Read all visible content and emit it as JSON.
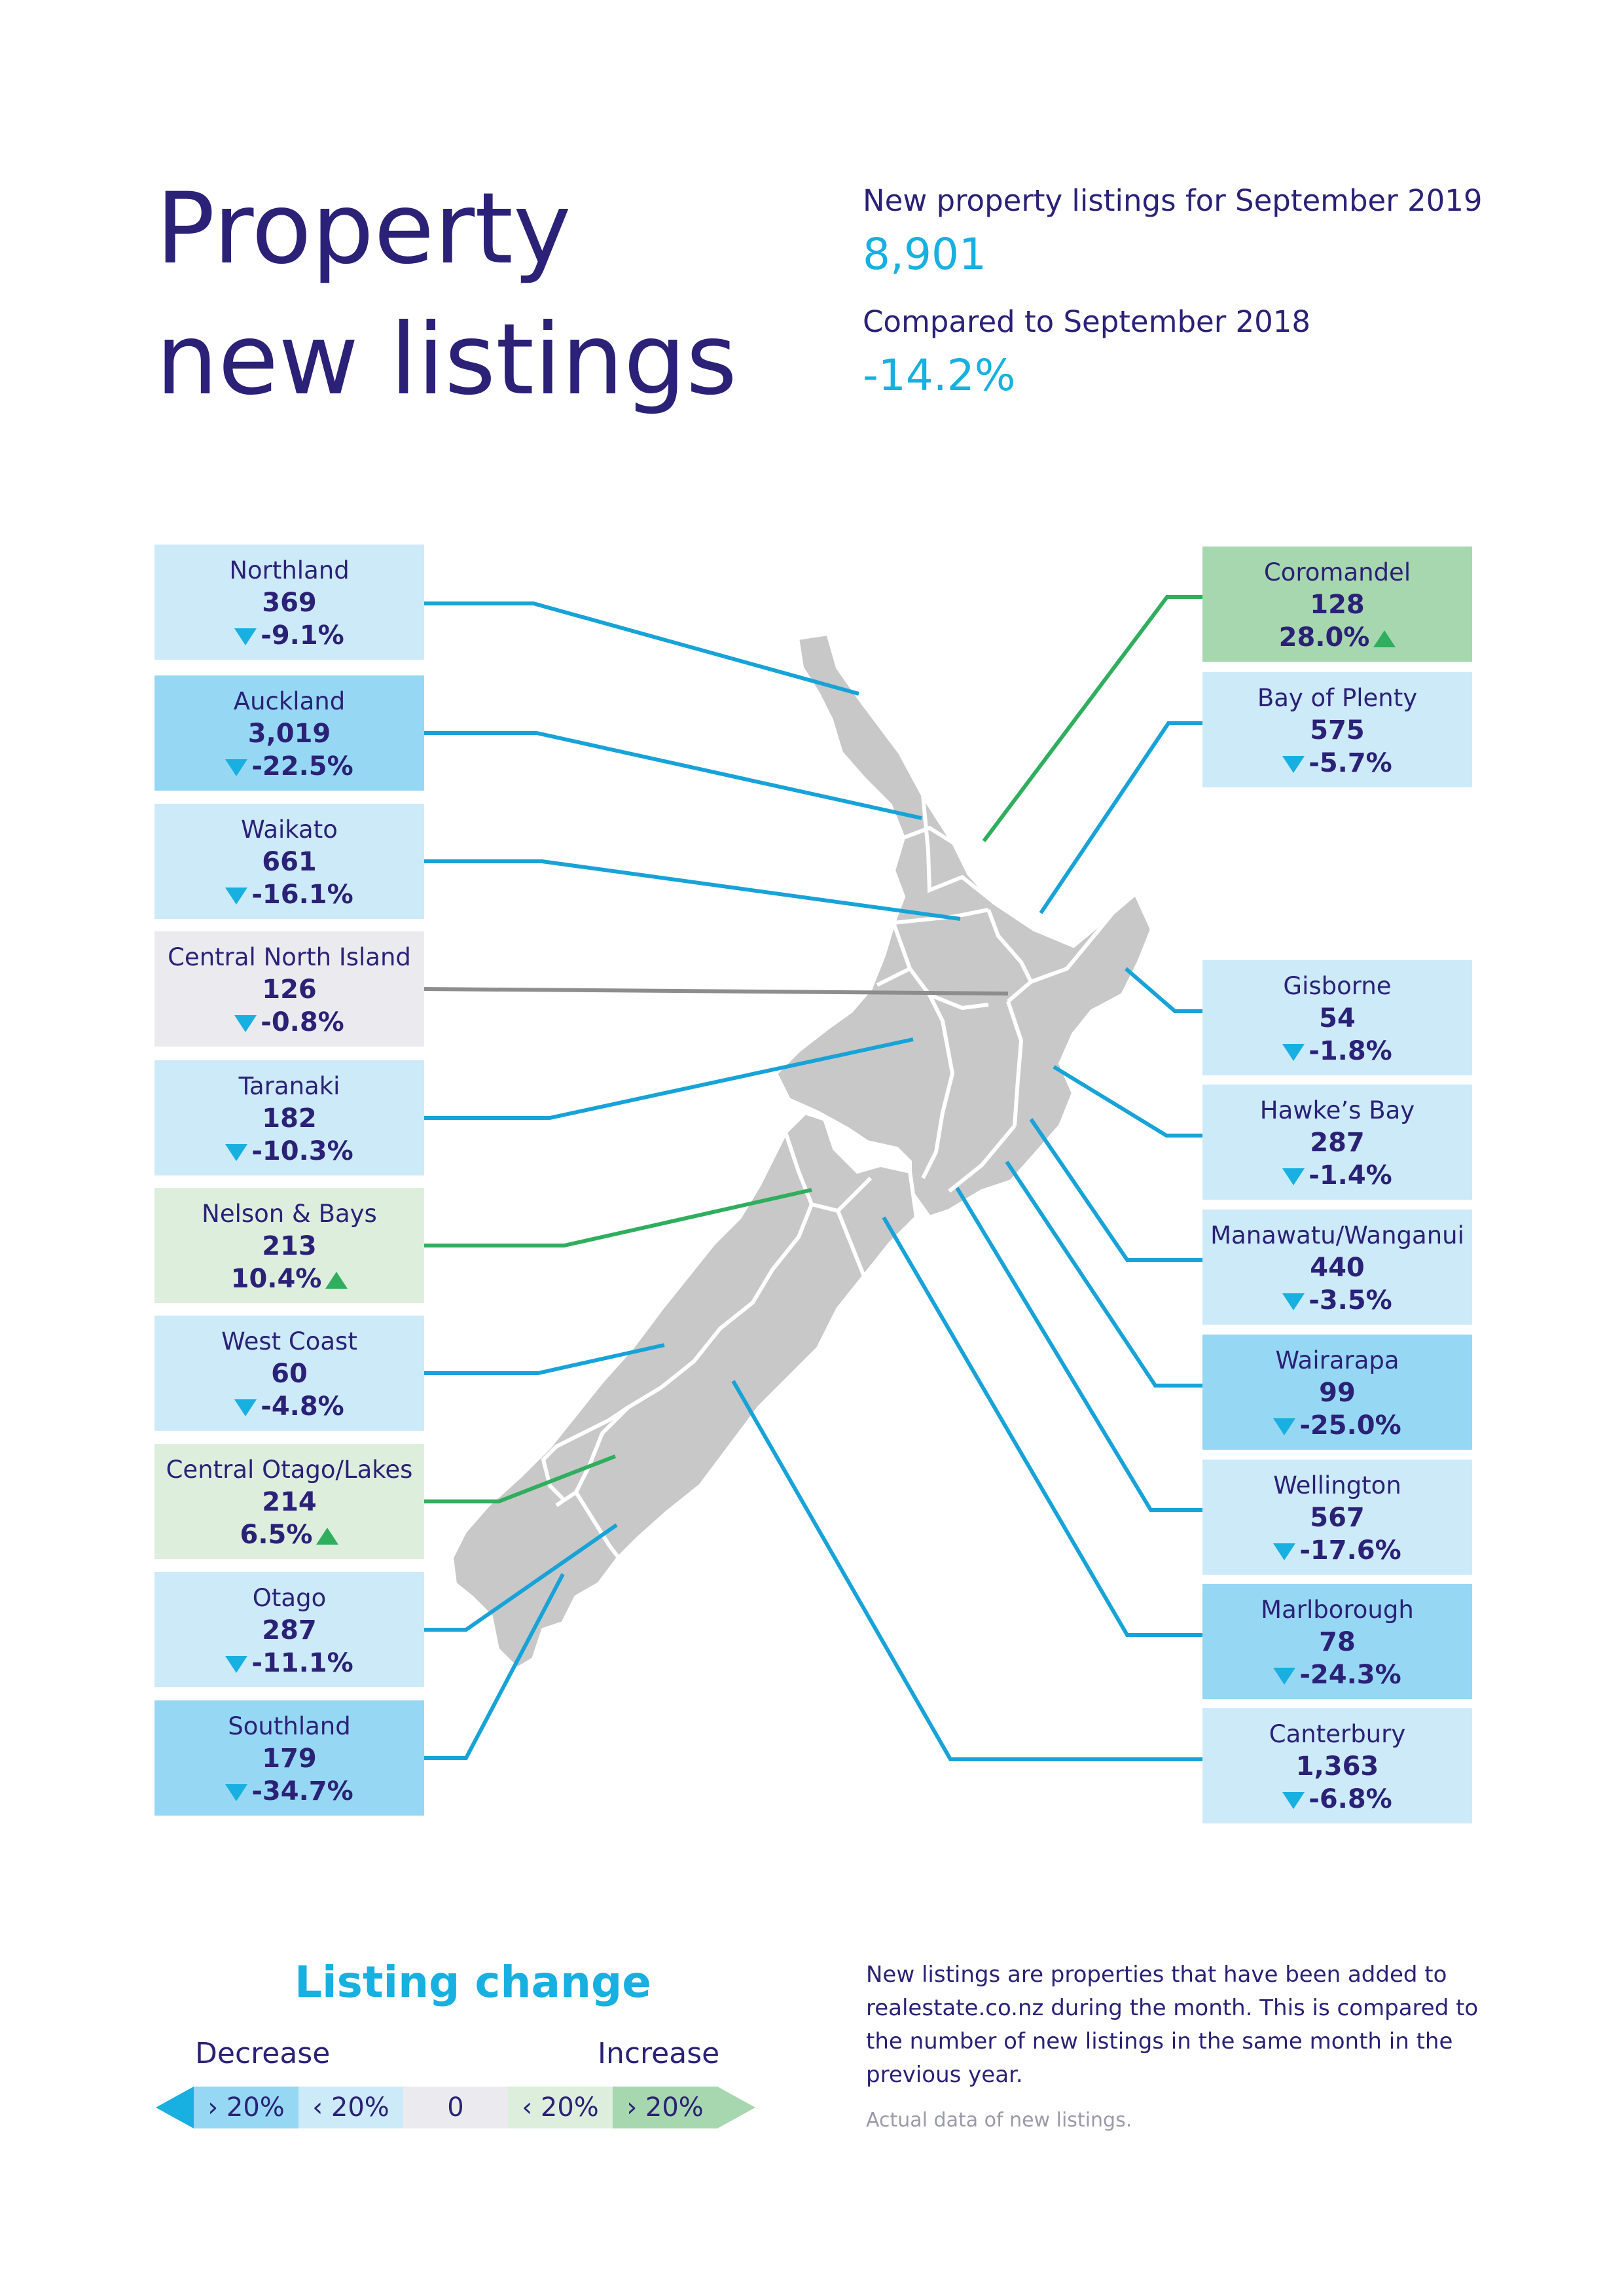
{
  "title": {
    "line1": "Property",
    "line2": "new listings"
  },
  "summary": {
    "current_label": "New property listings for September 2019",
    "current_value": "8,901",
    "compare_label": "Compared to September 2018",
    "compare_value": "-14.2%"
  },
  "colors": {
    "navy": "#2b2177",
    "cyan": "#17b0e0",
    "green": "#2fae5e",
    "map_grey": "#c8c8c8",
    "decrease_strong": "#96d8f3",
    "decrease_mild": "#cdeaf8",
    "neutral": "#ebebef",
    "increase_mild": "#ddeedd",
    "increase_strong": "#a7d7ae"
  },
  "regions_left": [
    {
      "name": "Northland",
      "value": "369",
      "change": "-9.1%",
      "dir": "down",
      "tier": "decrease_mild"
    },
    {
      "name": "Auckland",
      "value": "3,019",
      "change": "-22.5%",
      "dir": "down",
      "tier": "decrease_strong"
    },
    {
      "name": "Waikato",
      "value": "661",
      "change": "-16.1%",
      "dir": "down",
      "tier": "decrease_mild"
    },
    {
      "name": "Central North Island",
      "value": "126",
      "change": "-0.8%",
      "dir": "down",
      "tier": "neutral"
    },
    {
      "name": "Taranaki",
      "value": "182",
      "change": "-10.3%",
      "dir": "down",
      "tier": "decrease_mild"
    },
    {
      "name": "Nelson & Bays",
      "value": "213",
      "change": "10.4%",
      "dir": "up",
      "tier": "increase_mild"
    },
    {
      "name": "West Coast",
      "value": "60",
      "change": "-4.8%",
      "dir": "down",
      "tier": "decrease_mild"
    },
    {
      "name": "Central Otago/Lakes",
      "value": "214",
      "change": "6.5%",
      "dir": "up",
      "tier": "increase_mild"
    },
    {
      "name": "Otago",
      "value": "287",
      "change": "-11.1%",
      "dir": "down",
      "tier": "decrease_mild"
    },
    {
      "name": "Southland",
      "value": "179",
      "change": "-34.7%",
      "dir": "down",
      "tier": "decrease_strong"
    }
  ],
  "regions_right": [
    {
      "name": "Coromandel",
      "value": "128",
      "change": "28.0%",
      "dir": "up",
      "tier": "increase_strong"
    },
    {
      "name": "Bay of Plenty",
      "value": "575",
      "change": "-5.7%",
      "dir": "down",
      "tier": "decrease_mild"
    },
    {
      "name": "Gisborne",
      "value": "54",
      "change": "-1.8%",
      "dir": "down",
      "tier": "decrease_mild"
    },
    {
      "name": "Hawke’s Bay",
      "value": "287",
      "change": "-1.4%",
      "dir": "down",
      "tier": "decrease_mild"
    },
    {
      "name": "Manawatu/Wanganui",
      "value": "440",
      "change": "-3.5%",
      "dir": "down",
      "tier": "decrease_mild"
    },
    {
      "name": "Wairarapa",
      "value": "99",
      "change": "-25.0%",
      "dir": "down",
      "tier": "decrease_strong"
    },
    {
      "name": "Wellington",
      "value": "567",
      "change": "-17.6%",
      "dir": "down",
      "tier": "decrease_mild"
    },
    {
      "name": "Marlborough",
      "value": "78",
      "change": "-24.3%",
      "dir": "down",
      "tier": "decrease_strong"
    },
    {
      "name": "Canterbury",
      "value": "1,363",
      "change": "-6.8%",
      "dir": "down",
      "tier": "decrease_mild"
    }
  ],
  "legend": {
    "title": "Listing change",
    "decrease_label": "Decrease",
    "increase_label": "Increase",
    "cells": [
      "› 20%",
      "‹ 20%",
      "0",
      "‹ 20%",
      "› 20%"
    ]
  },
  "note": "New listings are properties that have been added to realestate.co.nz during the month. This is compared to the number of new listings in the same month in the previous year.",
  "source": "Actual data of new listings."
}
